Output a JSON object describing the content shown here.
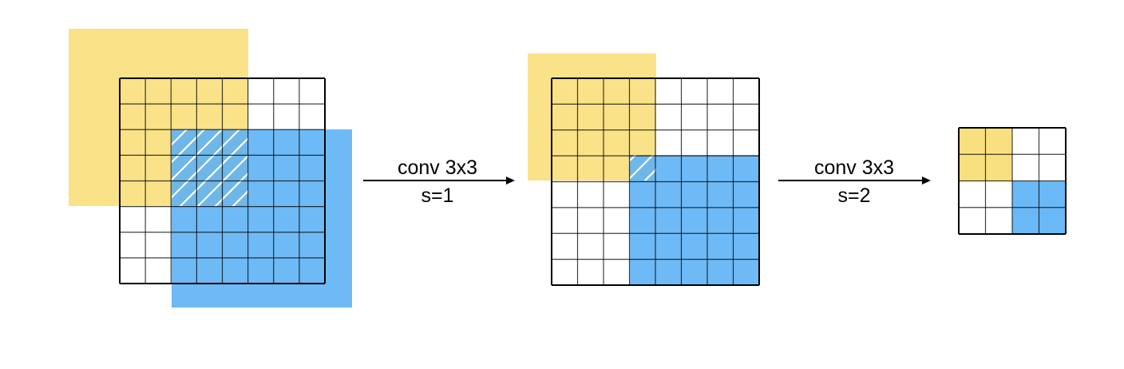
{
  "colors": {
    "yellow": "#F9E07F",
    "blue": "#5AB1F5",
    "grid_line": "#000000",
    "hatch": "#ffffff"
  },
  "stages": [
    {
      "grid_size": 8,
      "regions": [
        {
          "name": "yellow-receptive-field",
          "color": "yellow"
        },
        {
          "name": "blue-receptive-field",
          "color": "blue"
        }
      ],
      "overlap_hatched": true
    },
    {
      "grid_size": 8,
      "regions": [
        {
          "name": "yellow-region",
          "color": "yellow"
        },
        {
          "name": "blue-region",
          "color": "blue"
        }
      ],
      "overlap_hatched": true
    },
    {
      "grid_size": 4,
      "regions": [
        {
          "name": "yellow-output-block",
          "color": "yellow"
        },
        {
          "name": "blue-output-block",
          "color": "blue"
        }
      ],
      "overlap_hatched": false
    }
  ],
  "arrows": [
    {
      "line1": "conv 3x3",
      "line2": "s=1"
    },
    {
      "line1": "conv 3x3",
      "line2": "s=2"
    }
  ]
}
